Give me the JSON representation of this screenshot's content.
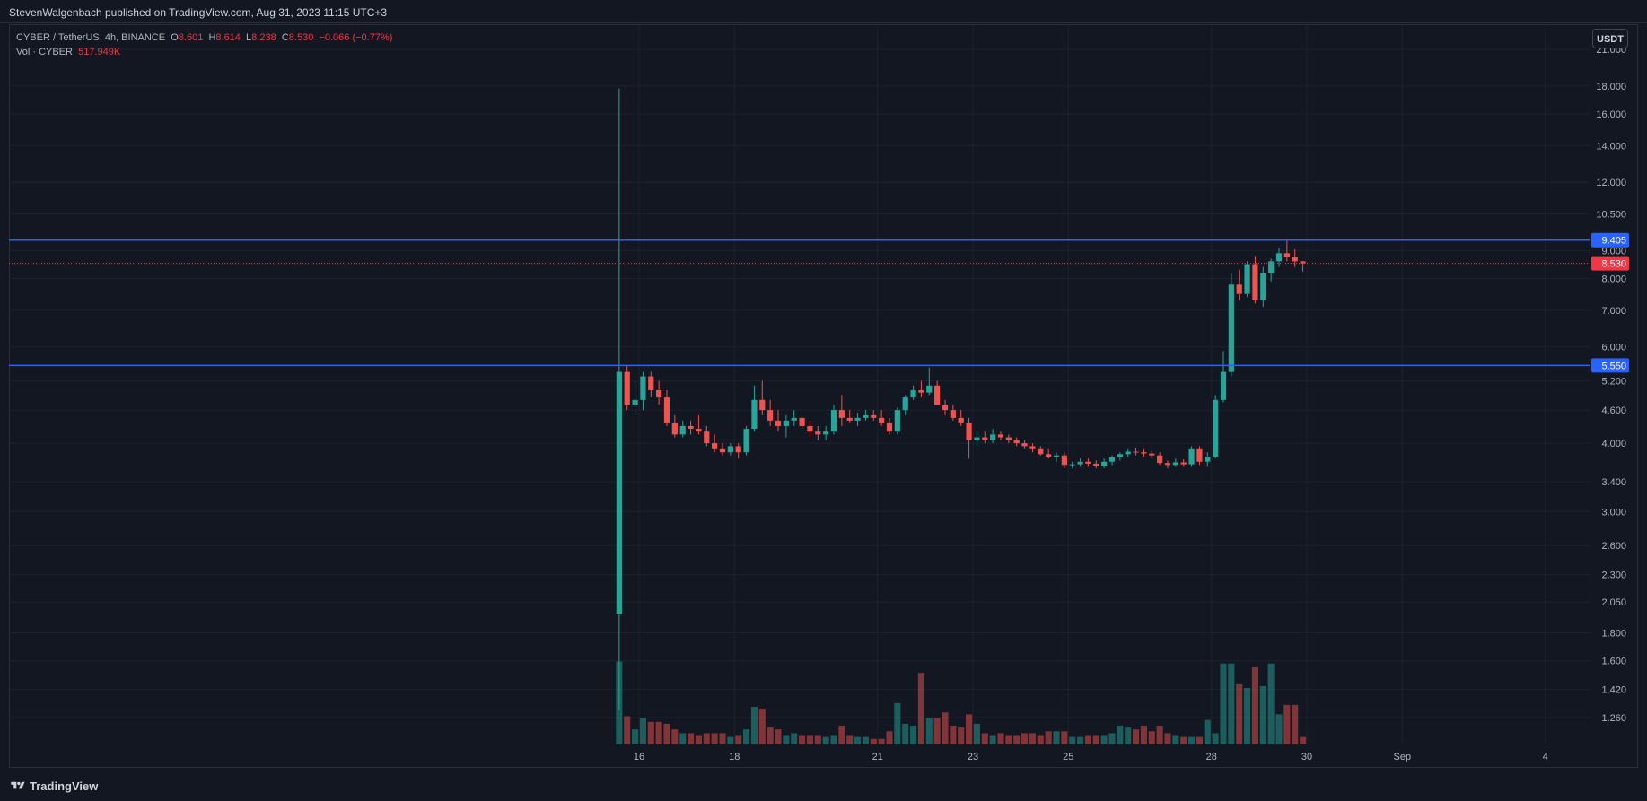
{
  "header": {
    "published": "StevenWalgenbach published on TradingView.com, Aug 31, 2023 11:15 UTC+3"
  },
  "legend": {
    "symbol": "CYBER / TetherUS, 4h, BINANCE",
    "o_label": "O",
    "o_val": "8.601",
    "h_label": "H",
    "h_val": "8.614",
    "l_label": "L",
    "l_val": "8.238",
    "c_label": "C",
    "c_val": "8.530",
    "change": "−0.066 (−0.77%)",
    "vol_label": "Vol · CYBER",
    "vol_val": "517.949K"
  },
  "currency_button": "USDT",
  "footer": {
    "brand": "TradingView"
  },
  "colors": {
    "up": "#26a69a",
    "down": "#ef5350",
    "bg": "#131722",
    "grid": "#1e222d",
    "level": "#2962ff",
    "last": "#f23645"
  },
  "chart_data": {
    "type": "candlestick",
    "scale": "log",
    "y_ticks": [
      "21.000",
      "18.000",
      "16.000",
      "14.000",
      "12.000",
      "10.500",
      "9.000",
      "8.000",
      "7.000",
      "6.000",
      "5.200",
      "4.600",
      "4.000",
      "3.400",
      "3.000",
      "2.600",
      "2.300",
      "2.050",
      "1.800",
      "1.600",
      "1.420",
      "1.260"
    ],
    "x_ticks": [
      {
        "label": "16",
        "day": 16
      },
      {
        "label": "18",
        "day": 18
      },
      {
        "label": "21",
        "day": 21
      },
      {
        "label": "23",
        "day": 23
      },
      {
        "label": "25",
        "day": 25
      },
      {
        "label": "28",
        "day": 28
      },
      {
        "label": "30",
        "day": 30
      },
      {
        "label": "Sep",
        "day": 32
      },
      {
        "label": "4",
        "day": 35
      }
    ],
    "horizontal_levels": [
      {
        "value": 9.405,
        "label": "9.405"
      },
      {
        "value": 5.55,
        "label": "5.550"
      }
    ],
    "last_price": {
      "value": 8.53,
      "label": "8.530"
    },
    "ohlc_start_day": 15.5,
    "bars_per_day": 6,
    "ohlc": [
      [
        1.95,
        17.8,
        1.3,
        5.4
      ],
      [
        5.4,
        5.55,
        4.6,
        4.7
      ],
      [
        4.7,
        5.2,
        4.5,
        4.8
      ],
      [
        4.8,
        5.4,
        4.6,
        5.3
      ],
      [
        5.3,
        5.4,
        4.85,
        5.0
      ],
      [
        5.0,
        5.2,
        4.7,
        4.85
      ],
      [
        4.85,
        5.0,
        4.3,
        4.35
      ],
      [
        4.35,
        4.5,
        4.1,
        4.15
      ],
      [
        4.15,
        4.4,
        4.1,
        4.3
      ],
      [
        4.3,
        4.4,
        4.15,
        4.25
      ],
      [
        4.25,
        4.5,
        4.15,
        4.2
      ],
      [
        4.2,
        4.3,
        3.95,
        4.0
      ],
      [
        4.0,
        4.15,
        3.85,
        3.9
      ],
      [
        3.9,
        4.0,
        3.8,
        3.85
      ],
      [
        3.85,
        4.0,
        3.8,
        3.95
      ],
      [
        3.95,
        4.0,
        3.75,
        3.85
      ],
      [
        3.85,
        4.3,
        3.8,
        4.25
      ],
      [
        4.25,
        5.1,
        4.2,
        4.8
      ],
      [
        4.8,
        5.2,
        4.5,
        4.6
      ],
      [
        4.6,
        4.8,
        4.3,
        4.4
      ],
      [
        4.4,
        4.6,
        4.2,
        4.3
      ],
      [
        4.3,
        4.5,
        4.1,
        4.4
      ],
      [
        4.4,
        4.6,
        4.3,
        4.45
      ],
      [
        4.45,
        4.5,
        4.25,
        4.3
      ],
      [
        4.3,
        4.4,
        4.1,
        4.2
      ],
      [
        4.2,
        4.3,
        4.05,
        4.15
      ],
      [
        4.15,
        4.3,
        4.05,
        4.2
      ],
      [
        4.2,
        4.7,
        4.15,
        4.6
      ],
      [
        4.6,
        4.9,
        4.3,
        4.45
      ],
      [
        4.45,
        4.6,
        4.35,
        4.4
      ],
      [
        4.4,
        4.55,
        4.3,
        4.45
      ],
      [
        4.45,
        4.6,
        4.4,
        4.5
      ],
      [
        4.5,
        4.6,
        4.4,
        4.45
      ],
      [
        4.45,
        4.6,
        4.3,
        4.35
      ],
      [
        4.35,
        4.45,
        4.15,
        4.2
      ],
      [
        4.2,
        4.65,
        4.15,
        4.6
      ],
      [
        4.6,
        4.9,
        4.5,
        4.85
      ],
      [
        4.85,
        5.1,
        4.8,
        5.0
      ],
      [
        5.0,
        5.2,
        4.85,
        4.95
      ],
      [
        4.95,
        5.5,
        4.9,
        5.1
      ],
      [
        5.1,
        5.2,
        4.7,
        4.7
      ],
      [
        4.7,
        4.8,
        4.5,
        4.6
      ],
      [
        4.6,
        4.7,
        4.4,
        4.45
      ],
      [
        4.45,
        4.6,
        4.3,
        4.35
      ],
      [
        4.35,
        4.45,
        3.75,
        4.05
      ],
      [
        4.05,
        4.2,
        3.95,
        4.1
      ],
      [
        4.1,
        4.2,
        4.0,
        4.05
      ],
      [
        4.05,
        4.25,
        4.0,
        4.15
      ],
      [
        4.15,
        4.2,
        4.05,
        4.1
      ],
      [
        4.1,
        4.15,
        4.0,
        4.05
      ],
      [
        4.05,
        4.1,
        3.95,
        4.0
      ],
      [
        4.0,
        4.05,
        3.9,
        3.95
      ],
      [
        3.95,
        4.0,
        3.85,
        3.9
      ],
      [
        3.9,
        3.95,
        3.8,
        3.82
      ],
      [
        3.82,
        3.9,
        3.75,
        3.78
      ],
      [
        3.78,
        3.85,
        3.7,
        3.8
      ],
      [
        3.8,
        3.85,
        3.6,
        3.65
      ],
      [
        3.65,
        3.7,
        3.6,
        3.66
      ],
      [
        3.66,
        3.75,
        3.62,
        3.7
      ],
      [
        3.7,
        3.75,
        3.62,
        3.67
      ],
      [
        3.67,
        3.72,
        3.6,
        3.63
      ],
      [
        3.63,
        3.75,
        3.6,
        3.7
      ],
      [
        3.7,
        3.8,
        3.65,
        3.77
      ],
      [
        3.77,
        3.85,
        3.72,
        3.82
      ],
      [
        3.82,
        3.9,
        3.78,
        3.86
      ],
      [
        3.86,
        3.92,
        3.8,
        3.85
      ],
      [
        3.85,
        3.9,
        3.78,
        3.83
      ],
      [
        3.83,
        3.88,
        3.75,
        3.8
      ],
      [
        3.8,
        3.85,
        3.65,
        3.68
      ],
      [
        3.68,
        3.72,
        3.6,
        3.65
      ],
      [
        3.65,
        3.75,
        3.62,
        3.69
      ],
      [
        3.69,
        3.74,
        3.62,
        3.66
      ],
      [
        3.66,
        3.95,
        3.62,
        3.9
      ],
      [
        3.9,
        3.95,
        3.65,
        3.7
      ],
      [
        3.7,
        3.85,
        3.62,
        3.78
      ],
      [
        3.78,
        4.9,
        3.75,
        4.8
      ],
      [
        4.8,
        5.9,
        4.75,
        5.4
      ],
      [
        5.4,
        8.2,
        5.3,
        7.8
      ],
      [
        7.8,
        8.3,
        7.3,
        7.5
      ],
      [
        7.5,
        8.6,
        7.4,
        8.5
      ],
      [
        8.5,
        8.8,
        7.2,
        7.3
      ],
      [
        7.3,
        8.4,
        7.1,
        8.2
      ],
      [
        8.2,
        8.7,
        7.9,
        8.6
      ],
      [
        8.6,
        9.1,
        8.4,
        8.9
      ],
      [
        8.9,
        9.4,
        8.6,
        8.75
      ],
      [
        8.75,
        9.05,
        8.4,
        8.6
      ],
      [
        8.601,
        8.614,
        8.238,
        8.53
      ]
    ],
    "volume_relative_to_max": [
      0.44,
      0.15,
      0.08,
      0.14,
      0.12,
      0.12,
      0.11,
      0.08,
      0.06,
      0.06,
      0.05,
      0.06,
      0.06,
      0.06,
      0.04,
      0.05,
      0.08,
      0.2,
      0.19,
      0.09,
      0.08,
      0.05,
      0.06,
      0.05,
      0.05,
      0.05,
      0.04,
      0.05,
      0.1,
      0.05,
      0.04,
      0.04,
      0.03,
      0.03,
      0.07,
      0.22,
      0.11,
      0.1,
      0.38,
      0.14,
      0.14,
      0.17,
      0.1,
      0.09,
      0.16,
      0.11,
      0.06,
      0.05,
      0.06,
      0.05,
      0.05,
      0.06,
      0.06,
      0.05,
      0.07,
      0.07,
      0.07,
      0.04,
      0.04,
      0.05,
      0.05,
      0.05,
      0.06,
      0.1,
      0.09,
      0.08,
      0.1,
      0.07,
      0.1,
      0.06,
      0.05,
      0.04,
      0.04,
      0.04,
      0.13,
      0.06,
      0.43,
      0.43,
      0.32,
      0.3,
      0.41,
      0.31,
      0.43,
      0.16,
      0.21,
      0.21,
      0.04
    ]
  }
}
